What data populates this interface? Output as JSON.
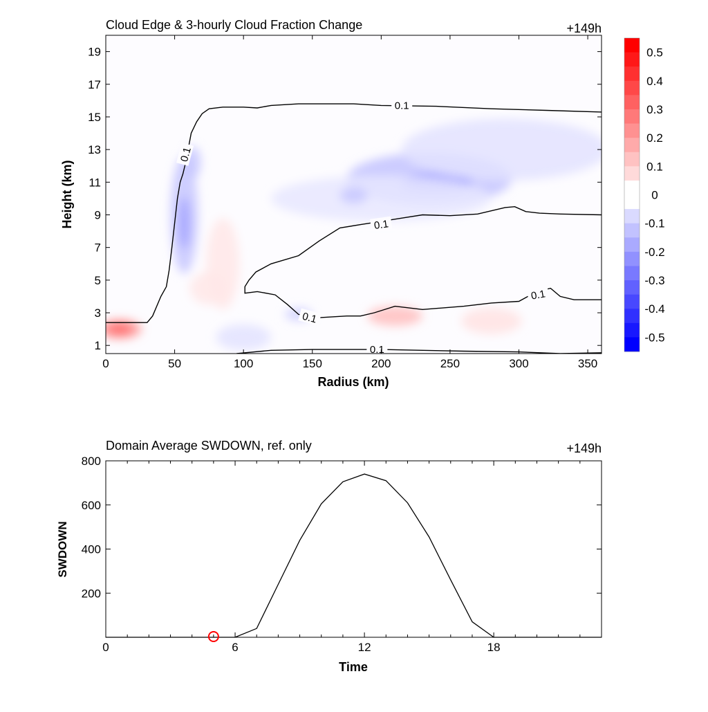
{
  "chart_data": [
    {
      "type": "heatmap",
      "title": "Cloud Edge & 3-hourly Cloud Fraction Change",
      "time_tag": "+149h",
      "xlabel": "Radius (km)",
      "ylabel": "Height (km)",
      "xlim": [
        0,
        360
      ],
      "ylim": [
        0.5,
        20
      ],
      "xticks": [
        0,
        50,
        100,
        150,
        200,
        250,
        300,
        350
      ],
      "yticks": [
        1,
        3,
        5,
        7,
        9,
        11,
        13,
        15,
        17,
        19
      ],
      "colorbar": {
        "levels": [
          0.5,
          0.4,
          0.3,
          0.2,
          0.1,
          0,
          -0.1,
          -0.2,
          -0.3,
          -0.4,
          -0.5
        ],
        "min": -0.55,
        "max": 0.55,
        "colors": {
          "positive": "#ff0000",
          "negative": "#0000ff",
          "zero": "#ffffff"
        }
      },
      "contour_label": "0.1",
      "contour_labels": [
        {
          "text": "0.1",
          "x": 215,
          "y": 15.7,
          "angle": 0
        },
        {
          "text": "0.1",
          "x": 58,
          "y": 12.7,
          "angle": -75
        },
        {
          "text": "0.1",
          "x": 200,
          "y": 8.4,
          "angle": -8
        },
        {
          "text": "0.1",
          "x": 148,
          "y": 2.7,
          "angle": 15
        },
        {
          "text": "0.1",
          "x": 314,
          "y": 4.1,
          "angle": -10
        },
        {
          "text": "0.1",
          "x": 197,
          "y": 0.75,
          "angle": 0
        }
      ],
      "contours": [
        [
          [
            0,
            2.4
          ],
          [
            30,
            2.4
          ],
          [
            34,
            2.8
          ],
          [
            40,
            4.0
          ],
          [
            44,
            4.6
          ],
          [
            46,
            5.6
          ],
          [
            48,
            7.0
          ],
          [
            50,
            8.5
          ],
          [
            52,
            10.0
          ],
          [
            54,
            11.0
          ],
          [
            56,
            11.5
          ],
          [
            58,
            12.2
          ],
          [
            62,
            14.0
          ],
          [
            66,
            14.7
          ],
          [
            70,
            15.2
          ],
          [
            75,
            15.5
          ],
          [
            85,
            15.6
          ],
          [
            100,
            15.6
          ],
          [
            110,
            15.55
          ],
          [
            120,
            15.7
          ],
          [
            140,
            15.8
          ],
          [
            160,
            15.8
          ],
          [
            180,
            15.8
          ],
          [
            200,
            15.7
          ],
          [
            240,
            15.65
          ],
          [
            280,
            15.5
          ],
          [
            320,
            15.4
          ],
          [
            360,
            15.3
          ]
        ],
        [
          [
            360,
            9.0
          ],
          [
            330,
            9.05
          ],
          [
            315,
            9.1
          ],
          [
            305,
            9.2
          ],
          [
            297,
            9.5
          ],
          [
            290,
            9.45
          ],
          [
            270,
            9.05
          ],
          [
            250,
            8.95
          ],
          [
            230,
            9.0
          ],
          [
            215,
            8.8
          ],
          [
            200,
            8.6
          ],
          [
            185,
            8.4
          ],
          [
            170,
            8.2
          ],
          [
            155,
            7.4
          ],
          [
            140,
            6.5
          ],
          [
            120,
            6.0
          ],
          [
            109,
            5.5
          ],
          [
            104,
            5.0
          ],
          [
            101,
            4.6
          ],
          [
            101,
            4.2
          ],
          [
            110,
            4.3
          ],
          [
            123,
            4.1
          ],
          [
            132,
            3.5
          ],
          [
            140,
            2.9
          ],
          [
            155,
            2.7
          ],
          [
            175,
            2.8
          ],
          [
            185,
            2.8
          ],
          [
            195,
            3.0
          ],
          [
            210,
            3.4
          ],
          [
            230,
            3.2
          ],
          [
            260,
            3.4
          ],
          [
            280,
            3.6
          ],
          [
            300,
            3.7
          ],
          [
            313,
            4.3
          ],
          [
            323,
            4.5
          ],
          [
            330,
            4.0
          ],
          [
            340,
            3.8
          ],
          [
            360,
            3.8
          ]
        ],
        [
          [
            95,
            0.5
          ],
          [
            120,
            0.7
          ],
          [
            150,
            0.75
          ],
          [
            175,
            0.75
          ],
          [
            200,
            0.75
          ],
          [
            230,
            0.7
          ],
          [
            260,
            0.65
          ],
          [
            300,
            0.6
          ],
          [
            330,
            0.5
          ],
          [
            360,
            0.55
          ]
        ]
      ],
      "anomalies": [
        {
          "x": 10,
          "y": 2.0,
          "rx": 16,
          "ry": 0.6,
          "v": 0.22
        },
        {
          "x": 10,
          "y": 2.0,
          "rx": 9,
          "ry": 0.35,
          "v": 0.32
        },
        {
          "x": 57,
          "y": 9.0,
          "rx": 10,
          "ry": 3.6,
          "v": -0.12
        },
        {
          "x": 57,
          "y": 8.5,
          "rx": 4,
          "ry": 1.6,
          "v": -0.2
        },
        {
          "x": 63,
          "y": 12.2,
          "rx": 6,
          "ry": 1.0,
          "v": -0.12
        },
        {
          "x": 235,
          "y": 11.2,
          "rx": 60,
          "ry": 1.6,
          "v": -0.13
        },
        {
          "x": 240,
          "y": 11.0,
          "rx": 26,
          "ry": 0.6,
          "v": -0.22
        },
        {
          "x": 290,
          "y": 13.0,
          "rx": 75,
          "ry": 1.9,
          "v": -0.06
        },
        {
          "x": 200,
          "y": 10.0,
          "rx": 80,
          "ry": 1.4,
          "v": -0.05
        },
        {
          "x": 180,
          "y": 10.2,
          "rx": 10,
          "ry": 0.5,
          "v": -0.12
        },
        {
          "x": 210,
          "y": 2.8,
          "rx": 20,
          "ry": 0.6,
          "v": 0.14
        },
        {
          "x": 280,
          "y": 2.5,
          "rx": 22,
          "ry": 0.8,
          "v": 0.06
        },
        {
          "x": 85,
          "y": 6.0,
          "rx": 12,
          "ry": 2.8,
          "v": 0.05
        },
        {
          "x": 75,
          "y": 4.5,
          "rx": 14,
          "ry": 1.0,
          "v": 0.05
        },
        {
          "x": 140,
          "y": 2.9,
          "rx": 10,
          "ry": 0.4,
          "v": -0.1
        },
        {
          "x": 100,
          "y": 1.5,
          "rx": 20,
          "ry": 0.8,
          "v": -0.06
        }
      ]
    },
    {
      "type": "line",
      "title": "Domain Average SWDOWN, ref. only",
      "time_tag": "+149h",
      "xlabel": "Time",
      "ylabel": "SWDOWN",
      "xlim": [
        0,
        23
      ],
      "ylim": [
        0,
        800
      ],
      "xticks": [
        0,
        6,
        12,
        18
      ],
      "yticks": [
        200,
        400,
        600,
        800
      ],
      "x": [
        0,
        1,
        2,
        3,
        4,
        5,
        6,
        7,
        8,
        9,
        10,
        11,
        12,
        13,
        14,
        15,
        16,
        17,
        18,
        19,
        20,
        21,
        22,
        23
      ],
      "values": [
        0,
        0,
        0,
        0,
        0,
        0,
        0,
        40,
        240,
        440,
        605,
        705,
        740,
        710,
        610,
        455,
        260,
        70,
        0,
        0,
        0,
        0,
        0,
        0
      ],
      "marker": {
        "x": 5,
        "y": 0,
        "color": "#ff0000"
      }
    }
  ]
}
